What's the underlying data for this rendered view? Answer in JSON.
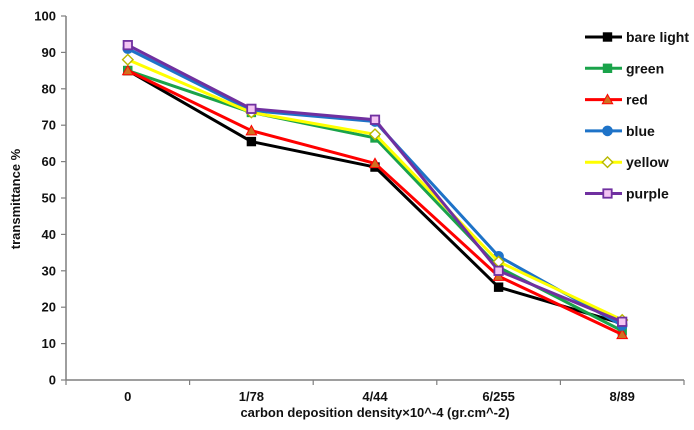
{
  "chart_data": {
    "type": "line",
    "title": "",
    "xlabel": "carbon deposition density×10^-4 (gr.cm^-2)",
    "ylabel": "transmittance %",
    "categories": [
      "0",
      "1/78",
      "4/44",
      "6/255",
      "8/89"
    ],
    "ylim": [
      0,
      100
    ],
    "yticks": [
      "0",
      "10",
      "20",
      "30",
      "40",
      "50",
      "60",
      "70",
      "80",
      "90",
      "100"
    ],
    "grid": false,
    "legend_position": "top-right",
    "series": [
      {
        "name": "bare light",
        "color": "#000000",
        "marker": "square",
        "values": [
          85,
          65.5,
          58.5,
          25.5,
          15.5
        ]
      },
      {
        "name": "green",
        "color": "#1aa34a",
        "marker": "square",
        "values": [
          85,
          73.5,
          66.5,
          31,
          13.5
        ]
      },
      {
        "name": "red",
        "color": "#ff0000",
        "marker": "triangle",
        "values": [
          85,
          68.5,
          59.5,
          28.5,
          12.5
        ]
      },
      {
        "name": "blue",
        "color": "#1e73c8",
        "marker": "circle",
        "values": [
          91,
          74,
          71,
          34,
          15
        ]
      },
      {
        "name": "yellow",
        "color": "#ffff00",
        "marker": "diamond",
        "values": [
          88,
          73.5,
          67.5,
          32.5,
          16.5
        ]
      },
      {
        "name": "purple",
        "color": "#7030a0",
        "marker": "square-open",
        "values": [
          92,
          74.5,
          71.5,
          30,
          16
        ]
      }
    ]
  }
}
